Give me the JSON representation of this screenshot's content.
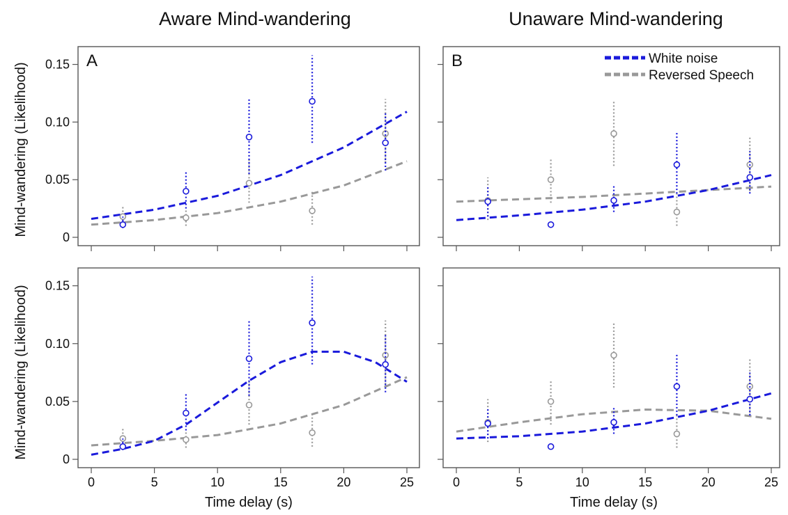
{
  "chart_data": {
    "type": "scatter",
    "column_titles": [
      "Aware Mind-wandering",
      "Unaware Mind-wandering"
    ],
    "ylabel": "Mind-wandering (Likelihood)",
    "xlabel": "Time delay (s)",
    "xlim": [
      0,
      25
    ],
    "ylim": [
      0,
      0.16
    ],
    "xticks": [
      "0",
      "5",
      "10",
      "15",
      "20",
      "25"
    ],
    "yticks": [
      "0",
      "0.05",
      "0.10",
      "0.15"
    ],
    "legend": {
      "placement": "top-right of panel B",
      "entries": [
        {
          "label": "White noise",
          "color": "#1a1adb"
        },
        {
          "label": "Reversed Speech",
          "color": "#999999"
        }
      ]
    },
    "panels": [
      {
        "letter": "A",
        "observed": {
          "white_noise": [
            {
              "x": 2.5,
              "y": 0.011,
              "lo": 0.008,
              "hi": 0.018
            },
            {
              "x": 7.5,
              "y": 0.04,
              "lo": 0.025,
              "hi": 0.058
            },
            {
              "x": 12.5,
              "y": 0.087,
              "lo": 0.055,
              "hi": 0.12
            },
            {
              "x": 17.5,
              "y": 0.118,
              "lo": 0.082,
              "hi": 0.158
            },
            {
              "x": 23.3,
              "y": 0.082,
              "lo": 0.058,
              "hi": 0.108
            }
          ],
          "reversed_speech": [
            {
              "x": 2.5,
              "y": 0.018,
              "lo": 0.01,
              "hi": 0.027
            },
            {
              "x": 7.5,
              "y": 0.017,
              "lo": 0.01,
              "hi": 0.025
            },
            {
              "x": 12.5,
              "y": 0.047,
              "lo": 0.03,
              "hi": 0.068
            },
            {
              "x": 17.5,
              "y": 0.023,
              "lo": 0.011,
              "hi": 0.04
            },
            {
              "x": 23.3,
              "y": 0.09,
              "lo": 0.065,
              "hi": 0.12
            }
          ]
        },
        "fit": {
          "white_noise": [
            [
              0,
              0.016
            ],
            [
              5,
              0.024
            ],
            [
              10,
              0.036
            ],
            [
              15,
              0.054
            ],
            [
              20,
              0.078
            ],
            [
              25,
              0.109
            ]
          ],
          "reversed_speech": [
            [
              0,
              0.011
            ],
            [
              5,
              0.015
            ],
            [
              10,
              0.021
            ],
            [
              15,
              0.031
            ],
            [
              20,
              0.045
            ],
            [
              25,
              0.066
            ]
          ]
        }
      },
      {
        "letter": "B",
        "observed": {
          "white_noise": [
            {
              "x": 2.5,
              "y": 0.031,
              "lo": 0.018,
              "hi": 0.045
            },
            {
              "x": 7.5,
              "y": 0.011,
              "lo": 0.011,
              "hi": 0.011
            },
            {
              "x": 12.5,
              "y": 0.032,
              "lo": 0.022,
              "hi": 0.045
            },
            {
              "x": 17.5,
              "y": 0.063,
              "lo": 0.038,
              "hi": 0.092
            },
            {
              "x": 23.3,
              "y": 0.052,
              "lo": 0.038,
              "hi": 0.075
            }
          ],
          "reversed_speech": [
            {
              "x": 2.5,
              "y": 0.032,
              "lo": 0.015,
              "hi": 0.052
            },
            {
              "x": 7.5,
              "y": 0.05,
              "lo": 0.03,
              "hi": 0.068
            },
            {
              "x": 12.5,
              "y": 0.09,
              "lo": 0.062,
              "hi": 0.118
            },
            {
              "x": 17.5,
              "y": 0.022,
              "lo": 0.01,
              "hi": 0.04
            },
            {
              "x": 23.3,
              "y": 0.063,
              "lo": 0.04,
              "hi": 0.088
            }
          ]
        },
        "fit": {
          "white_noise": [
            [
              0,
              0.015
            ],
            [
              5,
              0.019
            ],
            [
              10,
              0.024
            ],
            [
              15,
              0.031
            ],
            [
              20,
              0.041
            ],
            [
              25,
              0.054
            ]
          ],
          "reversed_speech": [
            [
              0,
              0.031
            ],
            [
              5,
              0.033
            ],
            [
              10,
              0.035
            ],
            [
              15,
              0.038
            ],
            [
              20,
              0.041
            ],
            [
              25,
              0.044
            ]
          ]
        }
      },
      {
        "letter": "",
        "observed": {
          "white_noise": [
            {
              "x": 2.5,
              "y": 0.011,
              "lo": 0.008,
              "hi": 0.018
            },
            {
              "x": 7.5,
              "y": 0.04,
              "lo": 0.025,
              "hi": 0.058
            },
            {
              "x": 12.5,
              "y": 0.087,
              "lo": 0.055,
              "hi": 0.12
            },
            {
              "x": 17.5,
              "y": 0.118,
              "lo": 0.082,
              "hi": 0.158
            },
            {
              "x": 23.3,
              "y": 0.082,
              "lo": 0.058,
              "hi": 0.108
            }
          ],
          "reversed_speech": [
            {
              "x": 2.5,
              "y": 0.018,
              "lo": 0.01,
              "hi": 0.027
            },
            {
              "x": 7.5,
              "y": 0.017,
              "lo": 0.01,
              "hi": 0.025
            },
            {
              "x": 12.5,
              "y": 0.047,
              "lo": 0.03,
              "hi": 0.068
            },
            {
              "x": 17.5,
              "y": 0.023,
              "lo": 0.011,
              "hi": 0.04
            },
            {
              "x": 23.3,
              "y": 0.09,
              "lo": 0.065,
              "hi": 0.12
            }
          ]
        },
        "fit": {
          "white_noise": [
            [
              0,
              0.004
            ],
            [
              2.5,
              0.009
            ],
            [
              5,
              0.016
            ],
            [
              7.5,
              0.03
            ],
            [
              10,
              0.049
            ],
            [
              12.5,
              0.068
            ],
            [
              15,
              0.084
            ],
            [
              17.5,
              0.093
            ],
            [
              20,
              0.093
            ],
            [
              22.5,
              0.084
            ],
            [
              25,
              0.067
            ]
          ],
          "reversed_speech": [
            [
              0,
              0.012
            ],
            [
              5,
              0.016
            ],
            [
              10,
              0.021
            ],
            [
              15,
              0.031
            ],
            [
              20,
              0.047
            ],
            [
              25,
              0.071
            ]
          ]
        }
      },
      {
        "letter": "",
        "observed": {
          "white_noise": [
            {
              "x": 2.5,
              "y": 0.031,
              "lo": 0.018,
              "hi": 0.045
            },
            {
              "x": 7.5,
              "y": 0.011,
              "lo": 0.011,
              "hi": 0.011
            },
            {
              "x": 12.5,
              "y": 0.032,
              "lo": 0.022,
              "hi": 0.045
            },
            {
              "x": 17.5,
              "y": 0.063,
              "lo": 0.038,
              "hi": 0.092
            },
            {
              "x": 23.3,
              "y": 0.052,
              "lo": 0.038,
              "hi": 0.075
            }
          ],
          "reversed_speech": [
            {
              "x": 2.5,
              "y": 0.032,
              "lo": 0.015,
              "hi": 0.052
            },
            {
              "x": 7.5,
              "y": 0.05,
              "lo": 0.03,
              "hi": 0.068
            },
            {
              "x": 12.5,
              "y": 0.09,
              "lo": 0.062,
              "hi": 0.118
            },
            {
              "x": 17.5,
              "y": 0.022,
              "lo": 0.01,
              "hi": 0.04
            },
            {
              "x": 23.3,
              "y": 0.063,
              "lo": 0.04,
              "hi": 0.088
            }
          ]
        },
        "fit": {
          "white_noise": [
            [
              0,
              0.018
            ],
            [
              5,
              0.02
            ],
            [
              10,
              0.024
            ],
            [
              15,
              0.031
            ],
            [
              20,
              0.042
            ],
            [
              25,
              0.057
            ]
          ],
          "reversed_speech": [
            [
              0,
              0.024
            ],
            [
              5,
              0.032
            ],
            [
              10,
              0.039
            ],
            [
              15,
              0.043
            ],
            [
              20,
              0.042
            ],
            [
              25,
              0.035
            ]
          ]
        }
      }
    ]
  }
}
